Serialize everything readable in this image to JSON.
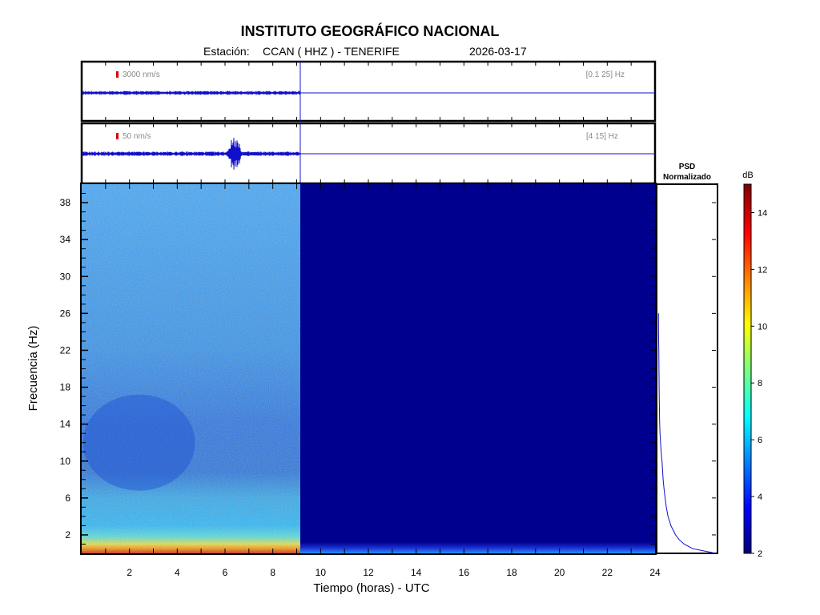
{
  "title": "INSTITUTO GEOGRÁFICO NACIONAL",
  "station_label": "Estación:",
  "station": "CCAN ( HHZ ) - TENERIFE",
  "date": "2026-03-17",
  "colors": {
    "trace": "#1010cc",
    "scale_marker": "#dd0000",
    "spectrogram_background": "#00008f"
  },
  "chart_data": [
    {
      "type": "line",
      "name": "broadband-trace",
      "amplitude_scale": "3000 nm/s",
      "filter_band": "[0.1 25] Hz",
      "x_range_hours": [
        0,
        24
      ],
      "data_end_hour": 9.15
    },
    {
      "type": "line",
      "name": "filtered-trace",
      "amplitude_scale": "50 nm/s",
      "filter_band": "[4 15] Hz",
      "x_range_hours": [
        0,
        24
      ],
      "data_end_hour": 9.15,
      "burst_hour": 6.4
    },
    {
      "type": "heatmap",
      "name": "spectrogram",
      "xlabel": "Tiempo (horas) - UTC",
      "ylabel": "Frecuencia  (Hz)",
      "xlim": [
        0,
        24
      ],
      "ylim": [
        0,
        40
      ],
      "x_ticks": [
        2,
        4,
        6,
        8,
        10,
        12,
        14,
        16,
        18,
        20,
        22,
        24
      ],
      "y_ticks": [
        2,
        6,
        10,
        14,
        18,
        22,
        26,
        30,
        34,
        38
      ],
      "data_end_hour": 9.15,
      "colorbar": {
        "label": "dB",
        "range": [
          2,
          15
        ],
        "ticks": [
          2,
          4,
          6,
          8,
          10,
          12,
          14
        ]
      }
    },
    {
      "type": "line",
      "name": "psd-normalizado",
      "title": "PSD\nNormalizado",
      "title_line1": "PSD",
      "title_line2": "Normalizado",
      "freq_hz": [
        0,
        0.5,
        1,
        1.5,
        2,
        3,
        4,
        5,
        6,
        7,
        8,
        9,
        10,
        11,
        12,
        13,
        14,
        16,
        18,
        20,
        22,
        24,
        26
      ],
      "value_norm": [
        1.0,
        0.6,
        0.45,
        0.36,
        0.3,
        0.22,
        0.17,
        0.14,
        0.12,
        0.1,
        0.085,
        0.075,
        0.065,
        0.05,
        0.04,
        0.03,
        0.025,
        0.02,
        0.015,
        0.012,
        0.01,
        0.006,
        0.004
      ]
    }
  ]
}
